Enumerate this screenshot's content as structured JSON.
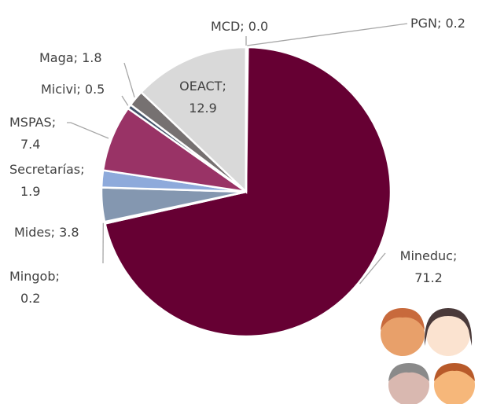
{
  "chart_data": {
    "type": "pie",
    "categories": [
      "PGN",
      "Mineduc",
      "Mingob",
      "Mides",
      "Secretarías",
      "MSPAS",
      "Micivi",
      "Maga",
      "OEACT",
      "MCD"
    ],
    "values": [
      0.2,
      71.2,
      0.2,
      3.8,
      1.9,
      7.4,
      0.5,
      1.8,
      12.9,
      0.0
    ],
    "value_labels": [
      "0.2",
      "71.2",
      "0.2",
      "3.8",
      "1.9",
      "7.4",
      "0.5",
      "1.8",
      "12.9",
      "0.0"
    ],
    "colors": [
      "#d9d9d9",
      "#660033",
      "#8497b0",
      "#8497b0",
      "#8eaadb",
      "#993366",
      "#44546a",
      "#767171",
      "#d9d9d9",
      "#d9d9d9"
    ]
  }
}
